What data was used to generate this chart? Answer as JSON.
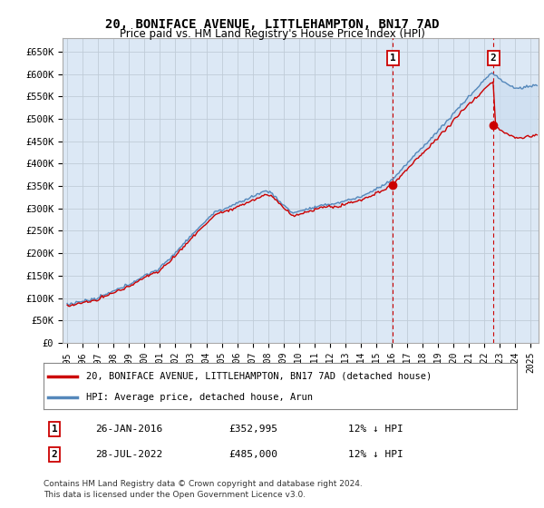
{
  "title": "20, BONIFACE AVENUE, LITTLEHAMPTON, BN17 7AD",
  "subtitle": "Price paid vs. HM Land Registry's House Price Index (HPI)",
  "ylabel_ticks": [
    "£0",
    "£50K",
    "£100K",
    "£150K",
    "£200K",
    "£250K",
    "£300K",
    "£350K",
    "£400K",
    "£450K",
    "£500K",
    "£550K",
    "£600K",
    "£650K"
  ],
  "ytick_values": [
    0,
    50000,
    100000,
    150000,
    200000,
    250000,
    300000,
    350000,
    400000,
    450000,
    500000,
    550000,
    600000,
    650000
  ],
  "ylim": [
    0,
    680000
  ],
  "xlim_start": 1994.7,
  "xlim_end": 2025.5,
  "purchase1_date": 2016.07,
  "purchase1_price": 352995,
  "purchase2_date": 2022.57,
  "purchase2_price": 485000,
  "legend_line1": "20, BONIFACE AVENUE, LITTLEHAMPTON, BN17 7AD (detached house)",
  "legend_line2": "HPI: Average price, detached house, Arun",
  "annotation1_date": "26-JAN-2016",
  "annotation1_price": "£352,995",
  "annotation1_hpi": "12% ↓ HPI",
  "annotation2_date": "28-JUL-2022",
  "annotation2_price": "£485,000",
  "annotation2_hpi": "12% ↓ HPI",
  "footer": "Contains HM Land Registry data © Crown copyright and database right 2024.\nThis data is licensed under the Open Government Licence v3.0.",
  "line_red_color": "#cc0000",
  "line_blue_color": "#5588bb",
  "fill_color": "#ccddf0",
  "background_color": "#dce8f5",
  "chart_bg_color": "#dce8f5",
  "fig_bg_color": "#ffffff",
  "grid_color": "#c0ccd8",
  "vline_color": "#cc0000"
}
